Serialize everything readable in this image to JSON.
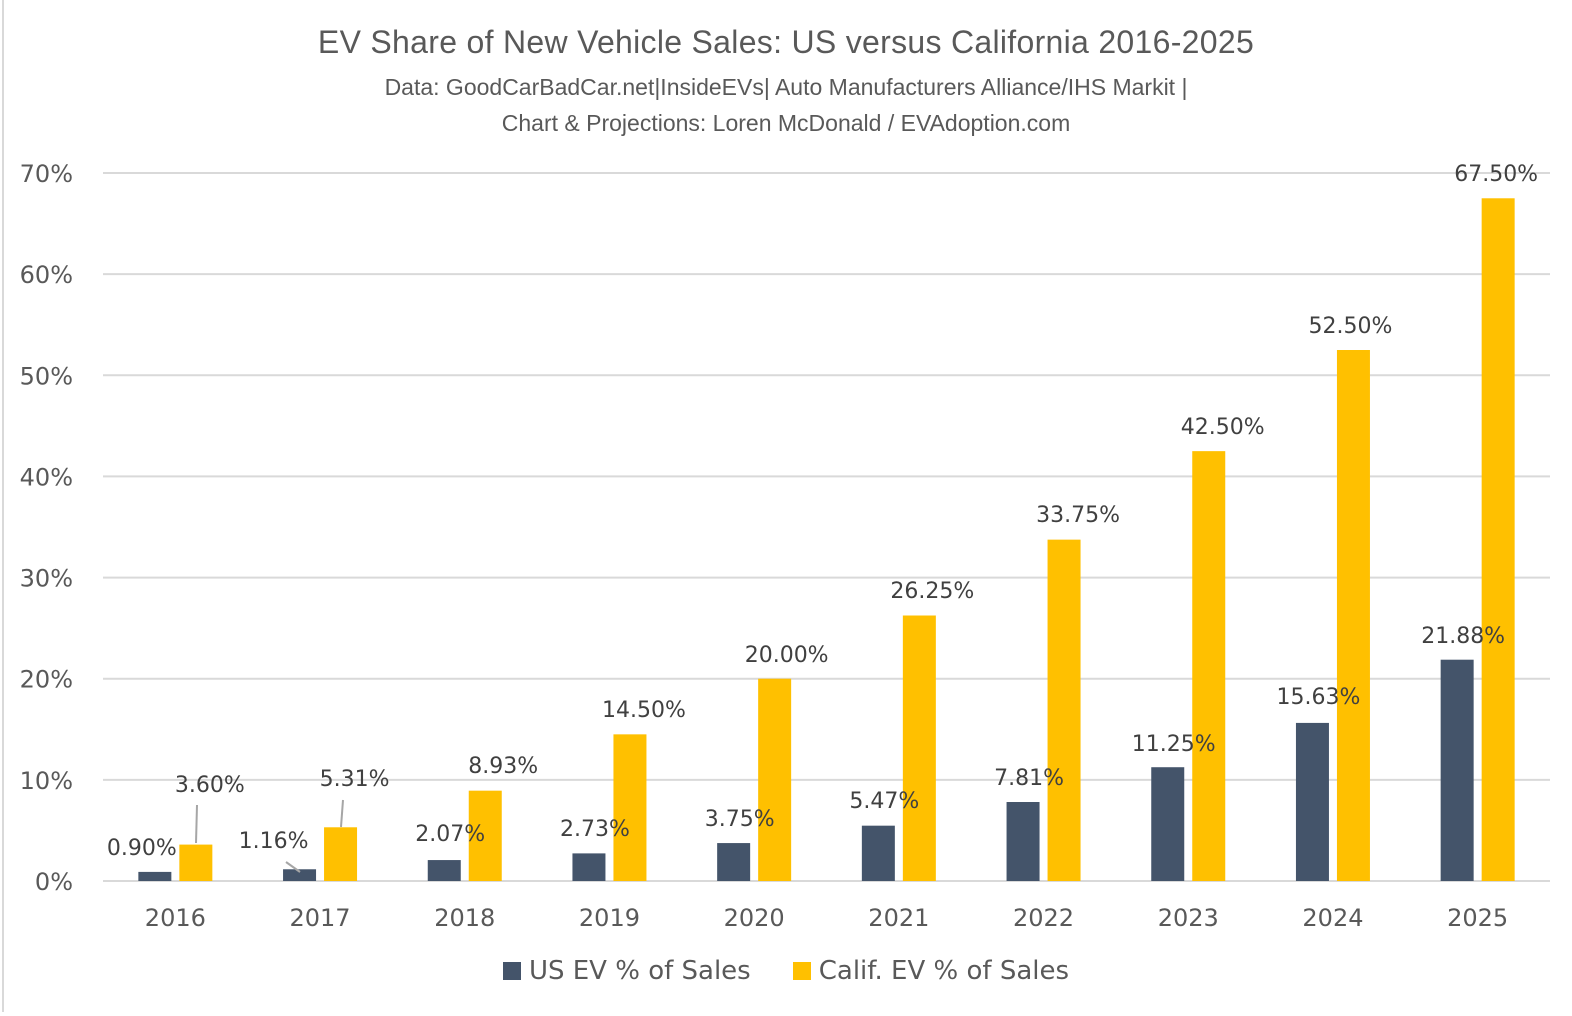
{
  "chart_data": {
    "type": "bar",
    "title": "EV Share of New Vehicle Sales: US versus California 2016-2025",
    "subtitle_lines": [
      "Data: GoodCarBadCar.net|InsideEVs|  Auto Manufacturers Alliance/IHS Markit |",
      "Chart & Projections: Loren McDonald / EVAdoption.com"
    ],
    "xlabel": "",
    "ylabel": "",
    "categories": [
      "2016",
      "2017",
      "2018",
      "2019",
      "2020",
      "2021",
      "2022",
      "2023",
      "2024",
      "2025"
    ],
    "series": [
      {
        "name": "US EV % of Sales",
        "color": "#44546A",
        "values": [
          0.9,
          1.16,
          2.07,
          2.73,
          3.75,
          5.47,
          7.81,
          11.25,
          15.63,
          21.88
        ],
        "labels": [
          "0.90%",
          "1.16%",
          "2.07%",
          "2.73%",
          "3.75%",
          "5.47%",
          "7.81%",
          "11.25%",
          "15.63%",
          "21.88%"
        ]
      },
      {
        "name": "Calif. EV % of Sales",
        "color": "#FFC000",
        "values": [
          3.6,
          5.31,
          8.93,
          14.5,
          20.0,
          26.25,
          33.75,
          42.5,
          52.5,
          67.5
        ],
        "labels": [
          "3.60%",
          "5.31%",
          "8.93%",
          "14.50%",
          "20.00%",
          "26.25%",
          "33.75%",
          "42.50%",
          "52.50%",
          "67.50%"
        ]
      }
    ],
    "ylim": [
      0,
      70
    ],
    "yticks": [
      0,
      10,
      20,
      30,
      40,
      50,
      60,
      70
    ],
    "ytick_labels": [
      "0%",
      "10%",
      "20%",
      "30%",
      "40%",
      "50%",
      "60%",
      "70%"
    ],
    "grid": true,
    "legend_position": "bottom"
  }
}
